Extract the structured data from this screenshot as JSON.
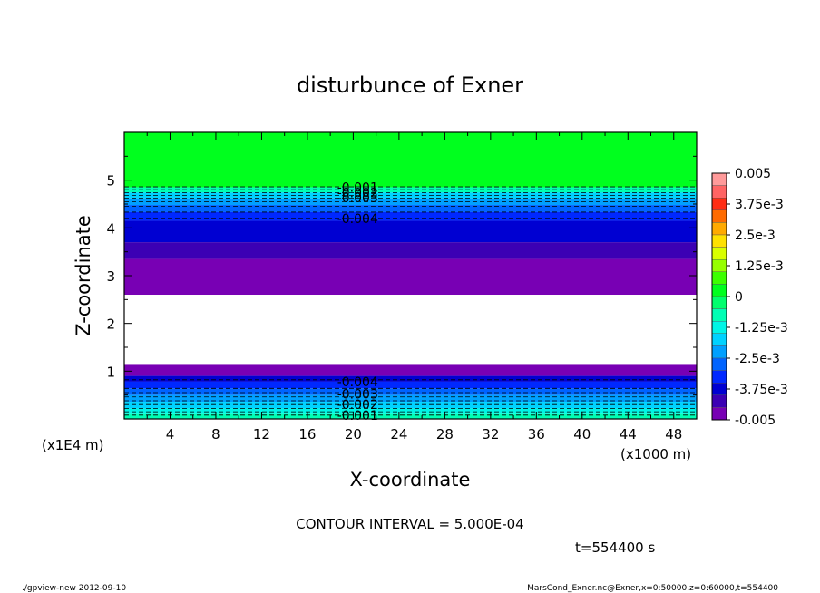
{
  "chart_data": {
    "type": "heatmap",
    "title": "disturbunce of Exner",
    "xlabel": "X-coordinate",
    "ylabel": "Z-coordinate",
    "x_unit_left": "(x1E4 m)",
    "x_unit_right": "(x1000 m)",
    "x_ticks": [
      4,
      8,
      12,
      16,
      20,
      24,
      28,
      32,
      36,
      40,
      44,
      48
    ],
    "y_ticks": [
      1,
      2,
      3,
      4,
      5
    ],
    "xlim": [
      0,
      50
    ],
    "ylim": [
      0,
      6
    ],
    "colorbar": {
      "labels": [
        "0.005",
        "3.75e-3",
        "2.5e-3",
        "1.25e-3",
        "0",
        "-1.25e-3",
        "-2.5e-3",
        "-3.75e-3",
        "-0.005"
      ],
      "values": [
        0.005,
        0.00375,
        0.0025,
        0.00125,
        0,
        -0.00125,
        -0.0025,
        -0.00375,
        -0.005
      ],
      "levels": [
        {
          "from": 0.0045,
          "to": 0.005,
          "color": "#ff9a9a"
        },
        {
          "from": 0.004,
          "to": 0.0045,
          "color": "#ff6464"
        },
        {
          "from": 0.0035,
          "to": 0.004,
          "color": "#ff2d14"
        },
        {
          "from": 0.003,
          "to": 0.0035,
          "color": "#ff6b00"
        },
        {
          "from": 0.0025,
          "to": 0.003,
          "color": "#ffaa00"
        },
        {
          "from": 0.002,
          "to": 0.0025,
          "color": "#ffe100"
        },
        {
          "from": 0.0015,
          "to": 0.002,
          "color": "#d9ff00"
        },
        {
          "from": 0.001,
          "to": 0.0015,
          "color": "#96ff00"
        },
        {
          "from": 0.0005,
          "to": 0.001,
          "color": "#3cff00"
        },
        {
          "from": 0.0,
          "to": 0.0005,
          "color": "#00ff1e"
        },
        {
          "from": -0.0005,
          "to": 0.0,
          "color": "#00ff6e"
        },
        {
          "from": -0.001,
          "to": -0.0005,
          "color": "#00ffb4"
        },
        {
          "from": -0.0015,
          "to": -0.001,
          "color": "#00f5e6"
        },
        {
          "from": -0.002,
          "to": -0.0015,
          "color": "#00d2ff"
        },
        {
          "from": -0.0025,
          "to": -0.002,
          "color": "#00a0ff"
        },
        {
          "from": -0.003,
          "to": -0.0025,
          "color": "#0064ff"
        },
        {
          "from": -0.0035,
          "to": -0.003,
          "color": "#0028ff"
        },
        {
          "from": -0.004,
          "to": -0.0035,
          "color": "#0000d2"
        },
        {
          "from": -0.0045,
          "to": -0.004,
          "color": "#3c00b4"
        },
        {
          "from": -0.005,
          "to": -0.0045,
          "color": "#7800b4"
        }
      ]
    },
    "field_bands": [
      {
        "z_bottom": 4.85,
        "z_top": 6.0,
        "color": "#00ff1e"
      },
      {
        "z_bottom": 4.74,
        "z_top": 4.85,
        "color": "#00ffb4"
      },
      {
        "z_bottom": 4.62,
        "z_top": 4.74,
        "color": "#00d2ff"
      },
      {
        "z_bottom": 4.48,
        "z_top": 4.62,
        "color": "#00a0ff"
      },
      {
        "z_bottom": 4.33,
        "z_top": 4.48,
        "color": "#0064ff"
      },
      {
        "z_bottom": 4.15,
        "z_top": 4.33,
        "color": "#0028ff"
      },
      {
        "z_bottom": 3.7,
        "z_top": 4.15,
        "color": "#0000d2"
      },
      {
        "z_bottom": 3.35,
        "z_top": 3.7,
        "color": "#3c00b4"
      },
      {
        "z_bottom": 2.6,
        "z_top": 3.35,
        "color": "#7800b4"
      },
      {
        "z_bottom": 1.15,
        "z_top": 2.6,
        "color": "#ffffff"
      },
      {
        "z_bottom": 0.9,
        "z_top": 1.15,
        "color": "#7800b4"
      },
      {
        "z_bottom": 0.78,
        "z_top": 0.9,
        "color": "#0000d2"
      },
      {
        "z_bottom": 0.64,
        "z_top": 0.78,
        "color": "#0028ff"
      },
      {
        "z_bottom": 0.5,
        "z_top": 0.64,
        "color": "#0064ff"
      },
      {
        "z_bottom": 0.36,
        "z_top": 0.5,
        "color": "#00a0ff"
      },
      {
        "z_bottom": 0.22,
        "z_top": 0.36,
        "color": "#00d2ff"
      },
      {
        "z_bottom": 0.1,
        "z_top": 0.22,
        "color": "#00f5e6"
      },
      {
        "z_bottom": 0.0,
        "z_top": 0.1,
        "color": "#00ffb4"
      }
    ],
    "contour_lines_upper": [
      4.2,
      4.33,
      4.45,
      4.55,
      4.62,
      4.68,
      4.74,
      4.8,
      4.86
    ],
    "contour_lines_lower": [
      0.08,
      0.15,
      0.22,
      0.3,
      0.38,
      0.46,
      0.55,
      0.64,
      0.73,
      0.82
    ],
    "contour_labels": [
      {
        "text": "-0.001",
        "x": 18.6,
        "z": 4.85
      },
      {
        "text": "-0.002",
        "x": 18.6,
        "z": 4.74
      },
      {
        "text": "-0.003",
        "x": 18.6,
        "z": 4.63
      },
      {
        "text": "-0.004",
        "x": 18.6,
        "z": 4.2
      },
      {
        "text": "-0.004",
        "x": 18.6,
        "z": 0.78
      },
      {
        "text": "-0.003",
        "x": 18.6,
        "z": 0.52
      },
      {
        "text": "-0.002",
        "x": 18.6,
        "z": 0.3
      },
      {
        "text": "-0.001",
        "x": 18.6,
        "z": 0.08
      }
    ],
    "contour_interval_text": "CONTOUR INTERVAL = 5.000E-04",
    "time_text": "t=554400 s"
  },
  "footer": {
    "left": "./gpview-new   2012-09-10",
    "right": "MarsCond_Exner.nc@Exner,x=0:50000,z=0:60000,t=554400"
  }
}
